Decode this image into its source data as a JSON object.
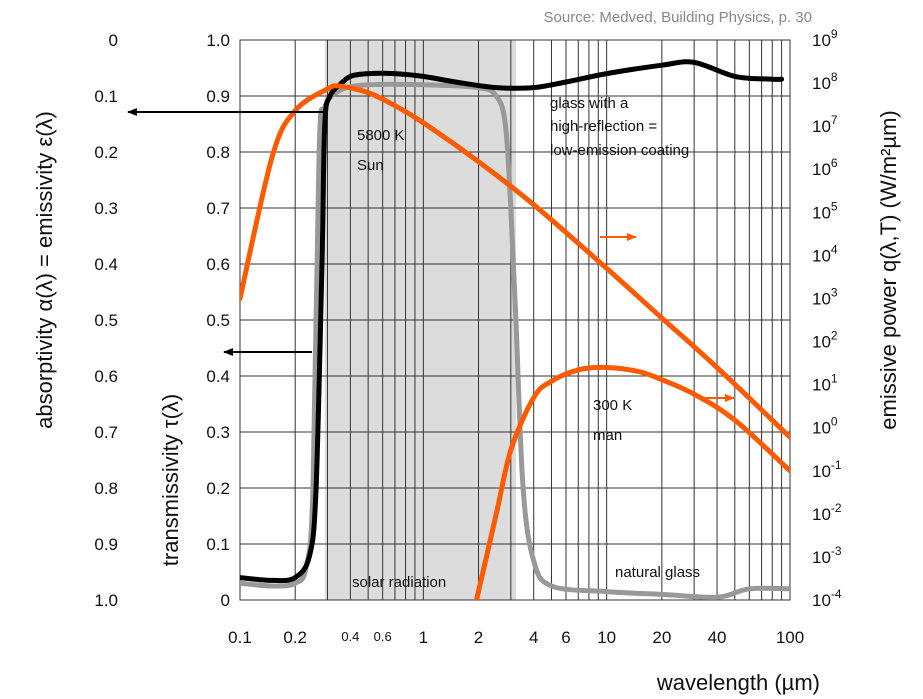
{
  "source_note": "Source: Medved, Building Physics, p. 30",
  "chart_data": {
    "type": "line",
    "x_axis": {
      "label": "wavelength (µm)",
      "scale": "log",
      "range": [
        0.1,
        100
      ],
      "ticks": [
        0.1,
        0.2,
        0.4,
        0.6,
        1,
        2,
        4,
        6,
        10,
        20,
        40,
        100
      ],
      "tick_labels": [
        "0.1",
        "0.2",
        "0.4",
        "0.6",
        "1",
        "2",
        "4",
        "6",
        "10",
        "20",
        "40",
        "100"
      ],
      "small_tick_labels": [
        "0.4",
        "0.6"
      ]
    },
    "y_axis_transmissivity": {
      "label": "transmissivity τ(λ)",
      "range": [
        0,
        1
      ],
      "ticks": [
        "0",
        "0.1",
        "0.2",
        "0.3",
        "0.4",
        "0.5",
        "0.6",
        "0.7",
        "0.8",
        "0.9",
        "1.0"
      ]
    },
    "y_axis_absorptivity": {
      "label": "absorptivity α(λ) = emissivity ε(λ)",
      "range": [
        1,
        0
      ],
      "ticks": [
        "1.0",
        "0.9",
        "0.8",
        "0.7",
        "0.6",
        "0.5",
        "0.4",
        "0.3",
        "0.2",
        "0.1",
        "0"
      ]
    },
    "y_axis_right": {
      "label": "emissive power q(λ,T) (W/m²µm)",
      "scale": "log",
      "range": [
        0.0001,
        1000000000
      ],
      "tick_base": "10",
      "tick_exponents": [
        "-4",
        "-3",
        "-2",
        "-1",
        "0",
        "1",
        "2",
        "3",
        "4",
        "5",
        "6",
        "7",
        "8",
        "9"
      ]
    },
    "shaded_band": {
      "label": "solar radiation",
      "x_range": [
        0.29,
        3.2
      ]
    },
    "series": [
      {
        "name": "glass with a high-reflection = low-emission coating",
        "color": "#000000",
        "axis": "transmissivity",
        "points": [
          [
            0.1,
            0.04
          ],
          [
            0.15,
            0.035
          ],
          [
            0.2,
            0.04
          ],
          [
            0.24,
            0.08
          ],
          [
            0.26,
            0.2
          ],
          [
            0.28,
            0.6
          ],
          [
            0.29,
            0.85
          ],
          [
            0.31,
            0.9
          ],
          [
            0.35,
            0.92
          ],
          [
            0.4,
            0.935
          ],
          [
            0.5,
            0.94
          ],
          [
            0.7,
            0.94
          ],
          [
            1,
            0.935
          ],
          [
            1.5,
            0.925
          ],
          [
            2.5,
            0.915
          ],
          [
            4,
            0.915
          ],
          [
            6,
            0.925
          ],
          [
            10,
            0.94
          ],
          [
            20,
            0.955
          ],
          [
            30,
            0.96
          ],
          [
            50,
            0.935
          ],
          [
            80,
            0.93
          ],
          [
            90,
            0.93
          ]
        ]
      },
      {
        "name": "natural glass",
        "color": "#999999",
        "axis": "transmissivity",
        "points": [
          [
            0.1,
            0.03
          ],
          [
            0.15,
            0.025
          ],
          [
            0.2,
            0.03
          ],
          [
            0.23,
            0.06
          ],
          [
            0.25,
            0.2
          ],
          [
            0.27,
            0.8
          ],
          [
            0.29,
            0.88
          ],
          [
            0.35,
            0.91
          ],
          [
            0.5,
            0.92
          ],
          [
            1,
            0.92
          ],
          [
            2,
            0.915
          ],
          [
            2.5,
            0.9
          ],
          [
            2.8,
            0.85
          ],
          [
            3.0,
            0.7
          ],
          [
            3.2,
            0.5
          ],
          [
            3.5,
            0.2
          ],
          [
            4,
            0.07
          ],
          [
            5,
            0.025
          ],
          [
            10,
            0.015
          ],
          [
            20,
            0.01
          ],
          [
            40,
            0.005
          ],
          [
            60,
            0.02
          ],
          [
            100,
            0.02
          ]
        ]
      },
      {
        "name": "5800 K Sun",
        "label_lines": [
          "5800 K",
          "Sun"
        ],
        "color": "#ff5a00",
        "axis": "emissive_power",
        "points": [
          [
            0.1,
            1000
          ],
          [
            0.15,
            2000000
          ],
          [
            0.2,
            23000000
          ],
          [
            0.3,
            73000000
          ],
          [
            0.35,
            85000000
          ],
          [
            0.5,
            60000000
          ],
          [
            0.7,
            30000000
          ],
          [
            1,
            12000000
          ],
          [
            2,
            1500000
          ],
          [
            4,
            150000
          ],
          [
            10,
            5000
          ],
          [
            20,
            350
          ],
          [
            40,
            25
          ],
          [
            100,
            0.6
          ]
        ]
      },
      {
        "name": "300 K man",
        "label_lines": [
          "300 K",
          "man"
        ],
        "color": "#ff5a00",
        "axis": "emissive_power",
        "points": [
          [
            1.95,
            0.0001
          ],
          [
            2.5,
            0.01
          ],
          [
            3,
            0.3
          ],
          [
            4,
            5
          ],
          [
            5,
            12
          ],
          [
            7,
            22
          ],
          [
            10,
            25
          ],
          [
            15,
            20
          ],
          [
            20,
            13
          ],
          [
            30,
            6
          ],
          [
            50,
            1.5
          ],
          [
            100,
            0.1
          ]
        ]
      }
    ],
    "annotations": {
      "coating_label": [
        "glass with a",
        "high-reflection =",
        "low-emission coating"
      ],
      "solar_label": "solar radiation",
      "natural_glass_label": "natural glass"
    }
  }
}
